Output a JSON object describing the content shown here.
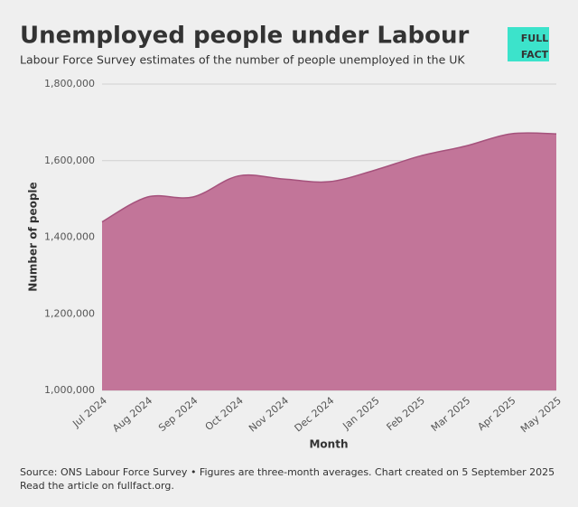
{
  "chart_data": {
    "type": "area",
    "title": "Unemployed people under Labour",
    "subtitle": "Labour Force Survey estimates of the number of people unemployed in the UK",
    "x_label": "Month",
    "y_label": "Number of people",
    "categories": [
      "Jul 2024",
      "Aug 2024",
      "Sep 2024",
      "Oct 2024",
      "Nov 2024",
      "Dec 2024",
      "Jan 2025",
      "Feb 2025",
      "Mar 2025",
      "Apr 2025",
      "May 2025"
    ],
    "values": [
      1440000,
      1505000,
      1505000,
      1560000,
      1552000,
      1545000,
      1575000,
      1612000,
      1638000,
      1670000,
      1670000
    ],
    "color": "#c27599",
    "ylim": [
      1000000,
      1800000
    ],
    "yticks": [
      {
        "value": 1000000,
        "label": "1,000,000"
      },
      {
        "value": 1200000,
        "label": "1,200,000"
      },
      {
        "value": 1400000,
        "label": "1,400,000"
      },
      {
        "value": 1600000,
        "label": "1,600,000"
      },
      {
        "value": 1800000,
        "label": "1,800,000"
      }
    ],
    "grid": true,
    "source": "Source: ONS Labour Force Survey • Figures are three-month averages. Chart created on 5 September 2025",
    "note": "Read the article on fullfact.org."
  },
  "logo": [
    "FULL",
    "FACT"
  ]
}
